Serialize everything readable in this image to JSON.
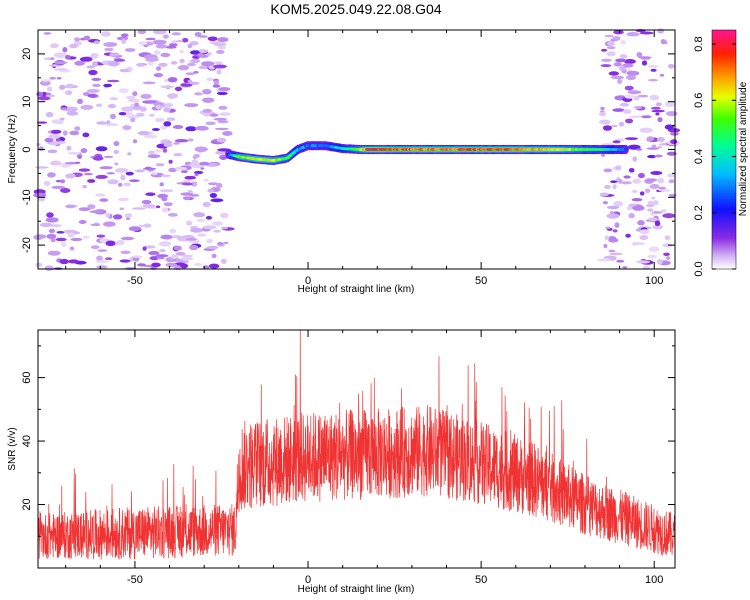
{
  "title": "KOM5.2025.049.22.08.G04",
  "chart_data": [
    {
      "type": "heatmap",
      "xlabel": "Height of straight line (km)",
      "ylabel": "Frequency (Hz)",
      "xlim": [
        -78,
        106
      ],
      "ylim": [
        -25,
        25
      ],
      "x_ticks": [
        -50,
        0,
        50,
        100
      ],
      "y_ticks": [
        -20,
        -10,
        0,
        10,
        20
      ],
      "colorbar": {
        "label": "Normalized spectral amplitude",
        "range": [
          0,
          0.85
        ],
        "ticks": [
          0.0,
          0.2,
          0.4,
          0.6,
          0.8
        ]
      },
      "signal_track": {
        "x": [
          -23,
          -20,
          -15,
          -10,
          -6,
          -3,
          0,
          5,
          10,
          15,
          18,
          25,
          40,
          55,
          70,
          85,
          92
        ],
        "freq": [
          -1.0,
          -1.5,
          -2.0,
          -2.3,
          -1.8,
          0.0,
          0.8,
          0.8,
          0.2,
          0.0,
          0.0,
          0.0,
          0.0,
          0.0,
          0.0,
          0.0,
          0.0
        ],
        "amplitude": [
          0.2,
          0.55,
          0.62,
          0.6,
          0.5,
          0.35,
          0.28,
          0.3,
          0.4,
          0.55,
          0.8,
          0.72,
          0.7,
          0.75,
          0.65,
          0.45,
          0.25
        ]
      },
      "noise_regions": [
        [
          -78,
          -23
        ],
        [
          85,
          106
        ]
      ],
      "noise_amplitude_range": [
        0.0,
        0.15
      ]
    },
    {
      "type": "line",
      "xlabel": "Height of straight line (km)",
      "ylabel": "SNR (v/v)",
      "xlim": [
        -78,
        106
      ],
      "ylim": [
        0,
        75
      ],
      "x_ticks": [
        -50,
        0,
        50,
        100
      ],
      "y_ticks": [
        20,
        40,
        60
      ],
      "color": "#f03232",
      "envelope": {
        "x": [
          -78,
          -50,
          -21,
          -20,
          0,
          20,
          35,
          50,
          65,
          80,
          106
        ],
        "mean": [
          10,
          11,
          12,
          32,
          35,
          36,
          37,
          33,
          28,
          20,
          10
        ],
        "spread": [
          6,
          7,
          7,
          12,
          12,
          12,
          12,
          11,
          10,
          8,
          6
        ]
      }
    }
  ]
}
